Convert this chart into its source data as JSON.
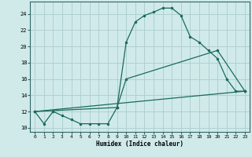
{
  "xlabel": "Humidex (Indice chaleur)",
  "xlim": [
    -0.5,
    23.5
  ],
  "ylim": [
    9.5,
    25.5
  ],
  "yticks": [
    10,
    12,
    14,
    16,
    18,
    20,
    22,
    24
  ],
  "xticks": [
    0,
    1,
    2,
    3,
    4,
    5,
    6,
    7,
    8,
    9,
    10,
    11,
    12,
    13,
    14,
    15,
    16,
    17,
    18,
    19,
    20,
    21,
    22,
    23
  ],
  "background_color": "#d0eaea",
  "grid_color": "#b0d0d0",
  "line_color": "#1a6b5a",
  "curve_x": [
    0,
    1,
    2,
    3,
    4,
    5,
    6,
    7,
    8,
    9,
    10,
    11,
    12,
    13,
    14,
    15,
    16,
    17,
    18,
    19,
    20,
    21,
    22,
    23
  ],
  "curve_y": [
    12,
    10.5,
    12,
    11.5,
    11,
    10.5,
    10.5,
    10.5,
    10.5,
    12.5,
    20.5,
    23,
    23.8,
    24.2,
    24.7,
    24.7,
    23.8,
    21.2,
    20.5,
    19.5,
    18.5,
    16,
    14.5,
    14.5
  ],
  "line2_x": [
    0,
    23
  ],
  "line2_y": [
    12,
    14.5
  ],
  "line3_x": [
    0,
    9,
    10,
    20,
    23
  ],
  "line3_y": [
    12,
    12.5,
    16,
    19.5,
    14.5
  ]
}
